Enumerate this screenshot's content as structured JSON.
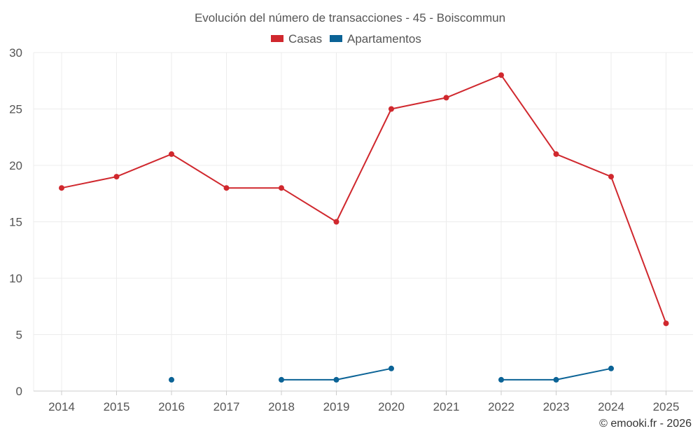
{
  "chart_data": {
    "type": "line",
    "title": "Evolución del número de transacciones - 45 - Boiscommun",
    "xlabel": "",
    "ylabel": "",
    "categories": [
      "2014",
      "2015",
      "2016",
      "2017",
      "2018",
      "2019",
      "2020",
      "2021",
      "2022",
      "2023",
      "2024",
      "2025"
    ],
    "ylim": [
      0,
      30
    ],
    "yticks": [
      0,
      5,
      10,
      15,
      20,
      25,
      30
    ],
    "grid": true,
    "legend_position": "top-center",
    "series": [
      {
        "name": "Casas",
        "color": "#d0282e",
        "values": [
          18,
          19,
          21,
          18,
          18,
          15,
          25,
          26,
          28,
          21,
          19,
          6
        ]
      },
      {
        "name": "Apartamentos",
        "color": "#0b6396",
        "values": [
          null,
          null,
          1,
          null,
          1,
          1,
          2,
          null,
          1,
          1,
          2,
          null
        ]
      }
    ]
  },
  "credit": "© emooki.fr - 2026"
}
